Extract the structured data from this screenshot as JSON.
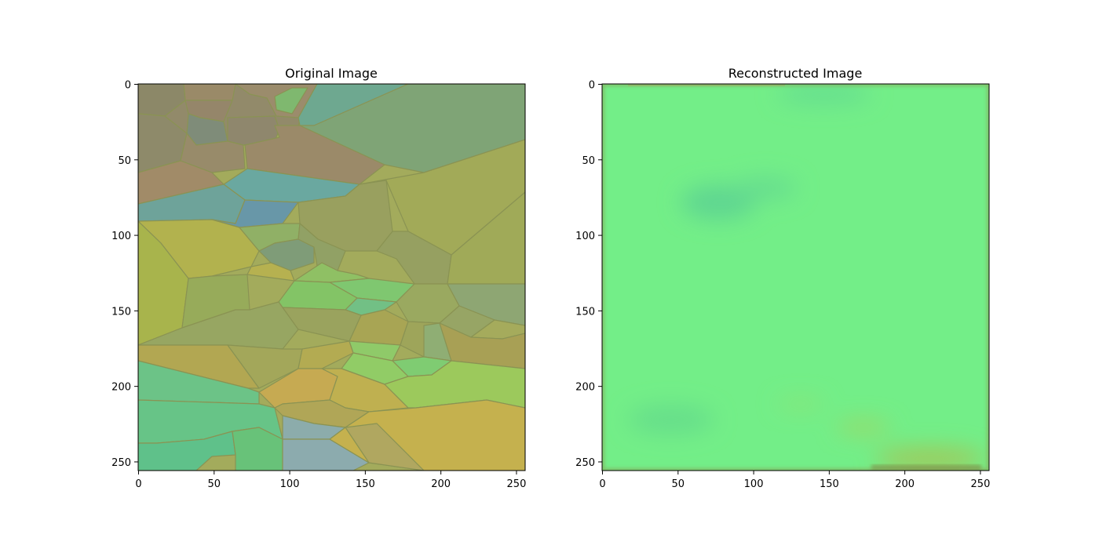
{
  "chart_data": [
    {
      "type": "heatmap",
      "title": "Original Image",
      "xlabel": "",
      "ylabel": "",
      "xlim": [
        0,
        255
      ],
      "ylim": [
        255,
        0
      ],
      "xticks": [
        0,
        50,
        100,
        150,
        200,
        250
      ],
      "yticks": [
        0,
        50,
        100,
        150,
        200,
        250
      ],
      "content": "voronoi-mosaic",
      "colors": {
        "background": "#a3ab5c",
        "edge": "#8a9353",
        "topright_green": "#7fa476",
        "left_brown": "#928a6a",
        "blue_band": "#6aa8a0",
        "yellow_green": "#a5b24c",
        "light_green": "#7fc96a",
        "bottom_left_green": "#67c487",
        "bottom_yellow": "#c5b14e",
        "bottom_blue": "#8cacab",
        "right_gray_green": "#8ea673"
      }
    },
    {
      "type": "heatmap",
      "title": "Reconstructed Image",
      "xlabel": "",
      "ylabel": "",
      "xlim": [
        0,
        255
      ],
      "ylim": [
        255,
        0
      ],
      "xticks": [
        0,
        50,
        100,
        150,
        200,
        250
      ],
      "yticks": [
        0,
        50,
        100,
        150,
        200,
        250
      ],
      "content": "blurry-green-field",
      "colors": {
        "base": "#73ee88",
        "dark_spot": "#5fd691",
        "yellow_spot": "#9ad560",
        "border": "#8a9a50"
      }
    }
  ]
}
